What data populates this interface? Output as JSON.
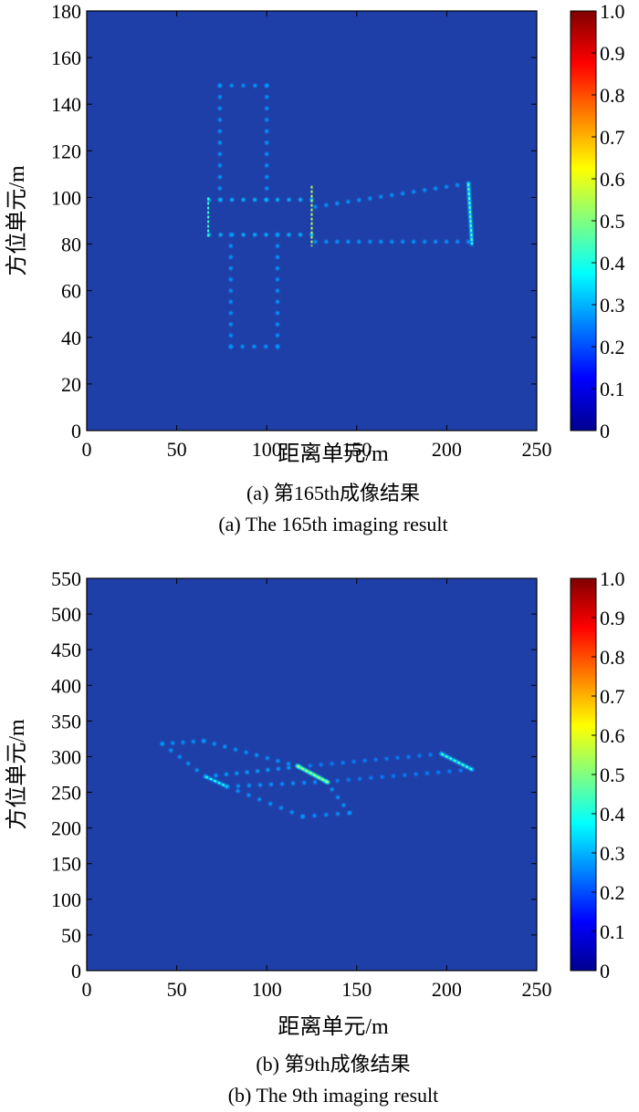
{
  "colormap_stops": [
    "#00008f",
    "#0000ff",
    "#0080ff",
    "#00ffff",
    "#80ff80",
    "#ffff00",
    "#ff8000",
    "#ff0000",
    "#800000"
  ],
  "background_color": "#1f3fa8",
  "chart_data": [
    {
      "type": "heatmap",
      "xlabel": "距离单元/m",
      "ylabel": "方位单元/m",
      "xlim": [
        0,
        250
      ],
      "ylim": [
        0,
        180
      ],
      "xticks": [
        "0",
        "50",
        "100",
        "150",
        "200",
        "250"
      ],
      "yticks": [
        "0",
        "20",
        "40",
        "60",
        "80",
        "100",
        "120",
        "140",
        "160",
        "180"
      ],
      "colorbar_ticks": [
        "0",
        "0.1",
        "0.2",
        "0.3",
        "0.4",
        "0.5",
        "0.6",
        "0.7",
        "0.8",
        "0.9",
        "1.0"
      ],
      "colorbar_range": [
        0,
        1
      ],
      "caption_cn": "(a) 第165th成像结果",
      "caption_en": "(a) The 165th imaging result",
      "point_intensity": 0.15,
      "lines": [
        {
          "x1": 74,
          "y1": 148,
          "x2": 100,
          "y2": 148,
          "v": 0.15
        },
        {
          "x1": 74,
          "y1": 148,
          "x2": 74,
          "y2": 99,
          "v": 0.15
        },
        {
          "x1": 100,
          "y1": 148,
          "x2": 100,
          "y2": 99,
          "v": 0.15
        },
        {
          "x1": 68,
          "y1": 99,
          "x2": 125,
          "y2": 99,
          "v": 0.18
        },
        {
          "x1": 68,
          "y1": 84,
          "x2": 125,
          "y2": 84,
          "v": 0.18
        },
        {
          "x1": 80,
          "y1": 84,
          "x2": 80,
          "y2": 36,
          "v": 0.15
        },
        {
          "x1": 106,
          "y1": 84,
          "x2": 106,
          "y2": 36,
          "v": 0.15
        },
        {
          "x1": 80,
          "y1": 36,
          "x2": 106,
          "y2": 36,
          "v": 0.15
        },
        {
          "x1": 127,
          "y1": 96,
          "x2": 212,
          "y2": 106,
          "v": 0.15
        },
        {
          "x1": 127,
          "y1": 81,
          "x2": 212,
          "y2": 81,
          "v": 0.15
        }
      ],
      "bright_lines": [
        {
          "x1": 67.5,
          "y1": 100,
          "x2": 67.5,
          "y2": 83,
          "v": 0.42
        },
        {
          "x1": 125,
          "y1": 105,
          "x2": 125,
          "y2": 79,
          "v": 0.55
        },
        {
          "x1": 212,
          "y1": 106,
          "x2": 214,
          "y2": 80,
          "v": 0.45
        }
      ]
    },
    {
      "type": "heatmap",
      "xlabel": "距离单元/m",
      "ylabel": "方位单元/m",
      "xlim": [
        0,
        250
      ],
      "ylim": [
        0,
        550
      ],
      "xticks": [
        "0",
        "50",
        "100",
        "150",
        "200",
        "250"
      ],
      "yticks": [
        "0",
        "50",
        "100",
        "150",
        "200",
        "250",
        "300",
        "350",
        "400",
        "450",
        "500",
        "550"
      ],
      "colorbar_ticks": [
        "0",
        "0.1",
        "0.2",
        "0.3",
        "0.4",
        "0.5",
        "0.6",
        "0.7",
        "0.8",
        "0.9",
        "1.0"
      ],
      "colorbar_range": [
        0,
        1
      ],
      "caption_cn": "(b) 第9th成像结果",
      "caption_en": "(b) The 9th imaging result",
      "point_intensity": 0.15,
      "lines": [
        {
          "x1": 42,
          "y1": 318,
          "x2": 65,
          "y2": 322,
          "v": 0.15
        },
        {
          "x1": 42,
          "y1": 318,
          "x2": 66,
          "y2": 272,
          "v": 0.15
        },
        {
          "x1": 65,
          "y1": 322,
          "x2": 118,
          "y2": 286,
          "v": 0.15
        },
        {
          "x1": 66,
          "y1": 272,
          "x2": 118,
          "y2": 286,
          "v": 0.16
        },
        {
          "x1": 78,
          "y1": 258,
          "x2": 133,
          "y2": 265,
          "v": 0.15
        },
        {
          "x1": 78,
          "y1": 258,
          "x2": 120,
          "y2": 216,
          "v": 0.15
        },
        {
          "x1": 120,
          "y1": 216,
          "x2": 146,
          "y2": 221,
          "v": 0.15
        },
        {
          "x1": 146,
          "y1": 221,
          "x2": 133,
          "y2": 265,
          "v": 0.15
        },
        {
          "x1": 118,
          "y1": 286,
          "x2": 197,
          "y2": 304,
          "v": 0.13
        },
        {
          "x1": 133,
          "y1": 265,
          "x2": 214,
          "y2": 282,
          "v": 0.13
        }
      ],
      "bright_lines": [
        {
          "x1": 66,
          "y1": 272,
          "x2": 78,
          "y2": 258,
          "v": 0.42
        },
        {
          "x1": 117,
          "y1": 287,
          "x2": 134,
          "y2": 264,
          "v": 0.55
        },
        {
          "x1": 197,
          "y1": 304,
          "x2": 214,
          "y2": 282,
          "v": 0.45
        }
      ]
    }
  ]
}
